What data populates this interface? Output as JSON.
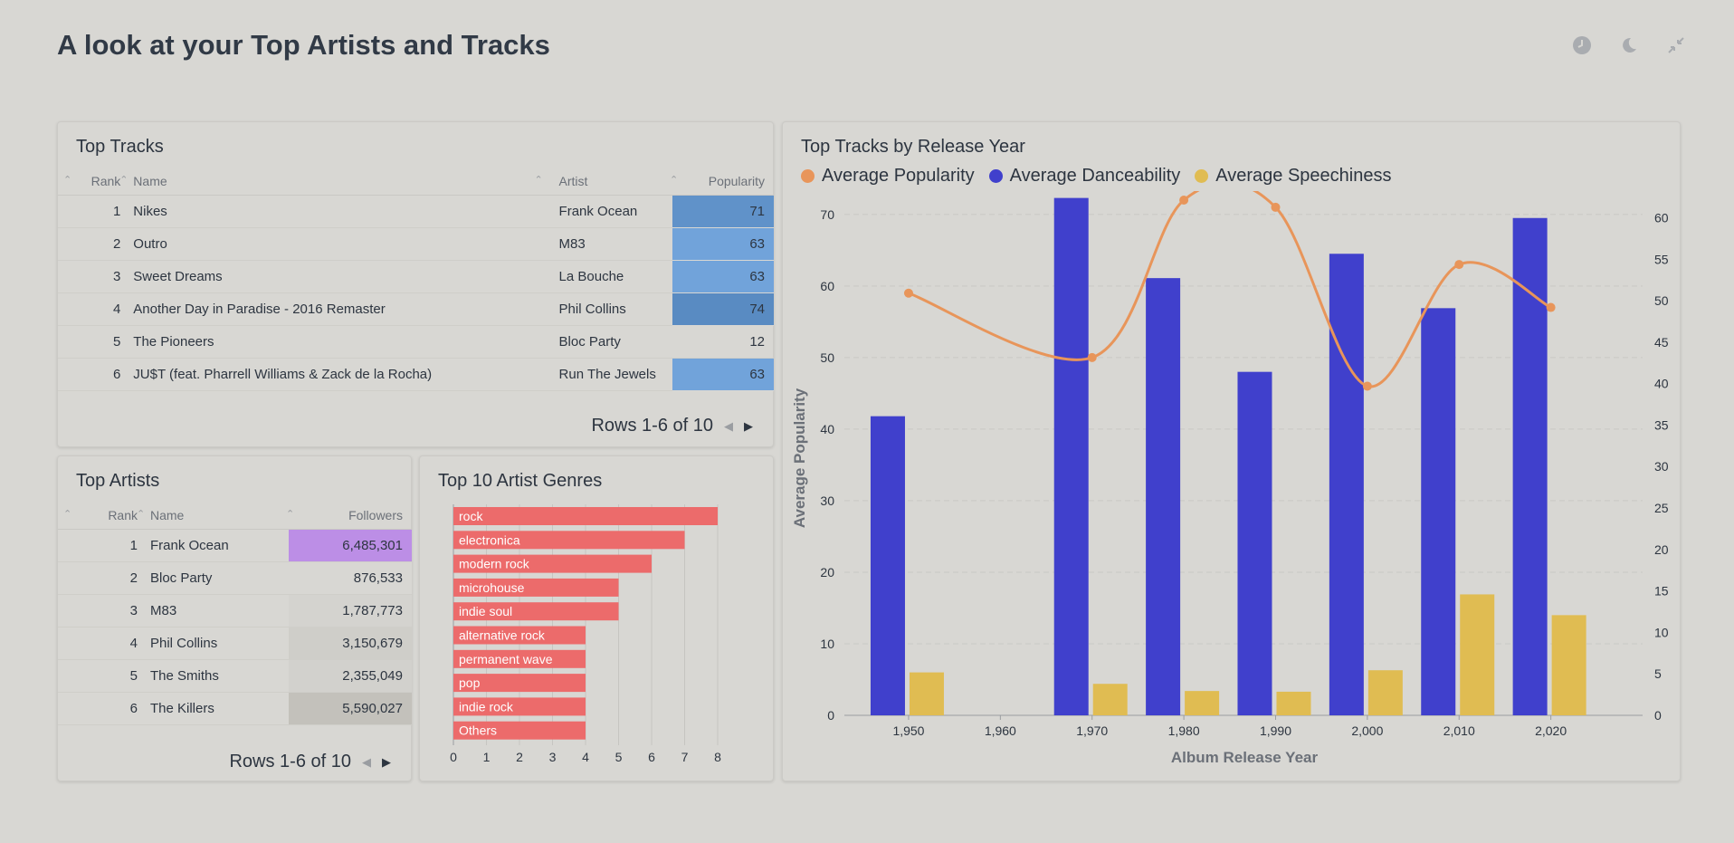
{
  "page": {
    "title": "A look at your Top Artists and Tracks"
  },
  "icons": [
    "clock-icon",
    "moon-icon",
    "collapse-icon"
  ],
  "top_tracks": {
    "title": "Top Tracks",
    "columns": [
      "Rank",
      "Name",
      "Artist",
      "Popularity"
    ],
    "rows": [
      {
        "rank": "1",
        "name": "Nikes",
        "artist": "Frank Ocean",
        "popularity": "71",
        "level": 71
      },
      {
        "rank": "2",
        "name": "Outro",
        "artist": "M83",
        "popularity": "63",
        "level": 63
      },
      {
        "rank": "3",
        "name": "Sweet Dreams",
        "artist": "La Bouche",
        "popularity": "63",
        "level": 63
      },
      {
        "rank": "4",
        "name": "Another Day in Paradise - 2016 Remaster",
        "artist": "Phil Collins",
        "popularity": "74",
        "level": 74
      },
      {
        "rank": "5",
        "name": "The Pioneers",
        "artist": "Bloc Party",
        "popularity": "12",
        "level": 12
      },
      {
        "rank": "6",
        "name": "JU$T (feat. Pharrell Williams & Zack de la Rocha)",
        "artist": "Run The Jewels",
        "popularity": "63",
        "level": 63
      }
    ],
    "pager": "Rows 1-6 of 10",
    "accent": "#72a7db"
  },
  "top_artists": {
    "title": "Top Artists",
    "columns": [
      "Rank",
      "Name",
      "Followers"
    ],
    "rows": [
      {
        "rank": "1",
        "name": "Frank Ocean",
        "followers": "6,485,301",
        "color": "#bc8ee6"
      },
      {
        "rank": "2",
        "name": "Bloc Party",
        "followers": "876,533",
        "color": "#d8d7d3"
      },
      {
        "rank": "3",
        "name": "M83",
        "followers": "1,787,773",
        "color": "#d4d3cf"
      },
      {
        "rank": "4",
        "name": "Phil Collins",
        "followers": "3,150,679",
        "color": "#cfcec9"
      },
      {
        "rank": "5",
        "name": "The Smiths",
        "followers": "2,355,049",
        "color": "#d2d1cd"
      },
      {
        "rank": "6",
        "name": "The Killers",
        "followers": "5,590,027",
        "color": "#c3c1bb"
      }
    ],
    "pager": "Rows 1-6 of 10"
  },
  "genres": {
    "title": "Top 10 Artist Genres",
    "chart_data": {
      "type": "bar",
      "orientation": "horizontal",
      "categories": [
        "rock",
        "electronica",
        "modern rock",
        "microhouse",
        "indie soul",
        "alternative rock",
        "permanent wave",
        "pop",
        "indie rock",
        "Others"
      ],
      "values": [
        8,
        7,
        6,
        5,
        5,
        4,
        4,
        4,
        4,
        4
      ],
      "xlim": [
        0,
        8
      ],
      "xticks": [
        "0",
        "1",
        "2",
        "3",
        "4",
        "5",
        "6",
        "7",
        "8"
      ],
      "color": "#ec6b6b"
    }
  },
  "release_year": {
    "title": "Top Tracks by Release Year",
    "chart_data": {
      "type": "bar",
      "categories": [
        "1,950",
        "1,960",
        "1,970",
        "1,980",
        "1,990",
        "2,000",
        "2,010",
        "2,020"
      ],
      "x": [
        1950,
        1960,
        1970,
        1980,
        1990,
        2000,
        2010,
        2020
      ],
      "series": [
        {
          "name": "Average Popularity",
          "type": "line",
          "axis": "left",
          "color": "#e8955a",
          "points": [
            [
              1950,
              59
            ],
            [
              1970,
              50
            ],
            [
              1980,
              72
            ],
            [
              1990,
              71
            ],
            [
              2000,
              46
            ],
            [
              2010,
              63
            ],
            [
              2020,
              57
            ]
          ]
        },
        {
          "name": "Average Danceability",
          "type": "bar",
          "axis": "left",
          "color": "#4040cc",
          "values": [
            41.8,
            null,
            72.3,
            61.1,
            48,
            64.5,
            56.9,
            69.5
          ]
        },
        {
          "name": "Average Speechiness",
          "type": "bar",
          "axis": "left",
          "color": "#e0bc52",
          "values": [
            6,
            null,
            4.4,
            3.4,
            3.3,
            6.3,
            16.9,
            14
          ]
        }
      ],
      "xlabel": "Album Release Year",
      "ylabel": "Average Popularity",
      "ylim": [
        0,
        72
      ],
      "yticks": [
        "0",
        "10",
        "20",
        "30",
        "40",
        "50",
        "60",
        "70"
      ],
      "y2lim": [
        0,
        63
      ],
      "y2ticks": [
        "0",
        "5",
        "10",
        "15",
        "20",
        "25",
        "30",
        "35",
        "40",
        "45",
        "50",
        "55",
        "60"
      ],
      "legend": "top-left",
      "grid": true
    }
  }
}
